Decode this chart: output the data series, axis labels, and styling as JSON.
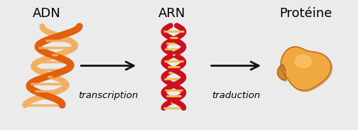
{
  "background_color": "#ebebeb",
  "title_adn": "ADN",
  "title_arn": "ARN",
  "title_protein": "Protéine",
  "label_transcription": "transcription",
  "label_traduction": "traduction",
  "adn_color1": "#e06010",
  "adn_color2": "#f0b060",
  "arn_color1": "#cc1020",
  "arn_color2": "#f0c050",
  "protein_color": "#f0a840",
  "protein_light": "#ffd080",
  "protein_dark": "#c07828",
  "arrow_color": "#111111",
  "title_fontsize": 13,
  "label_fontsize": 9.5,
  "figsize": [
    5.04,
    1.83
  ],
  "dpi": 100
}
